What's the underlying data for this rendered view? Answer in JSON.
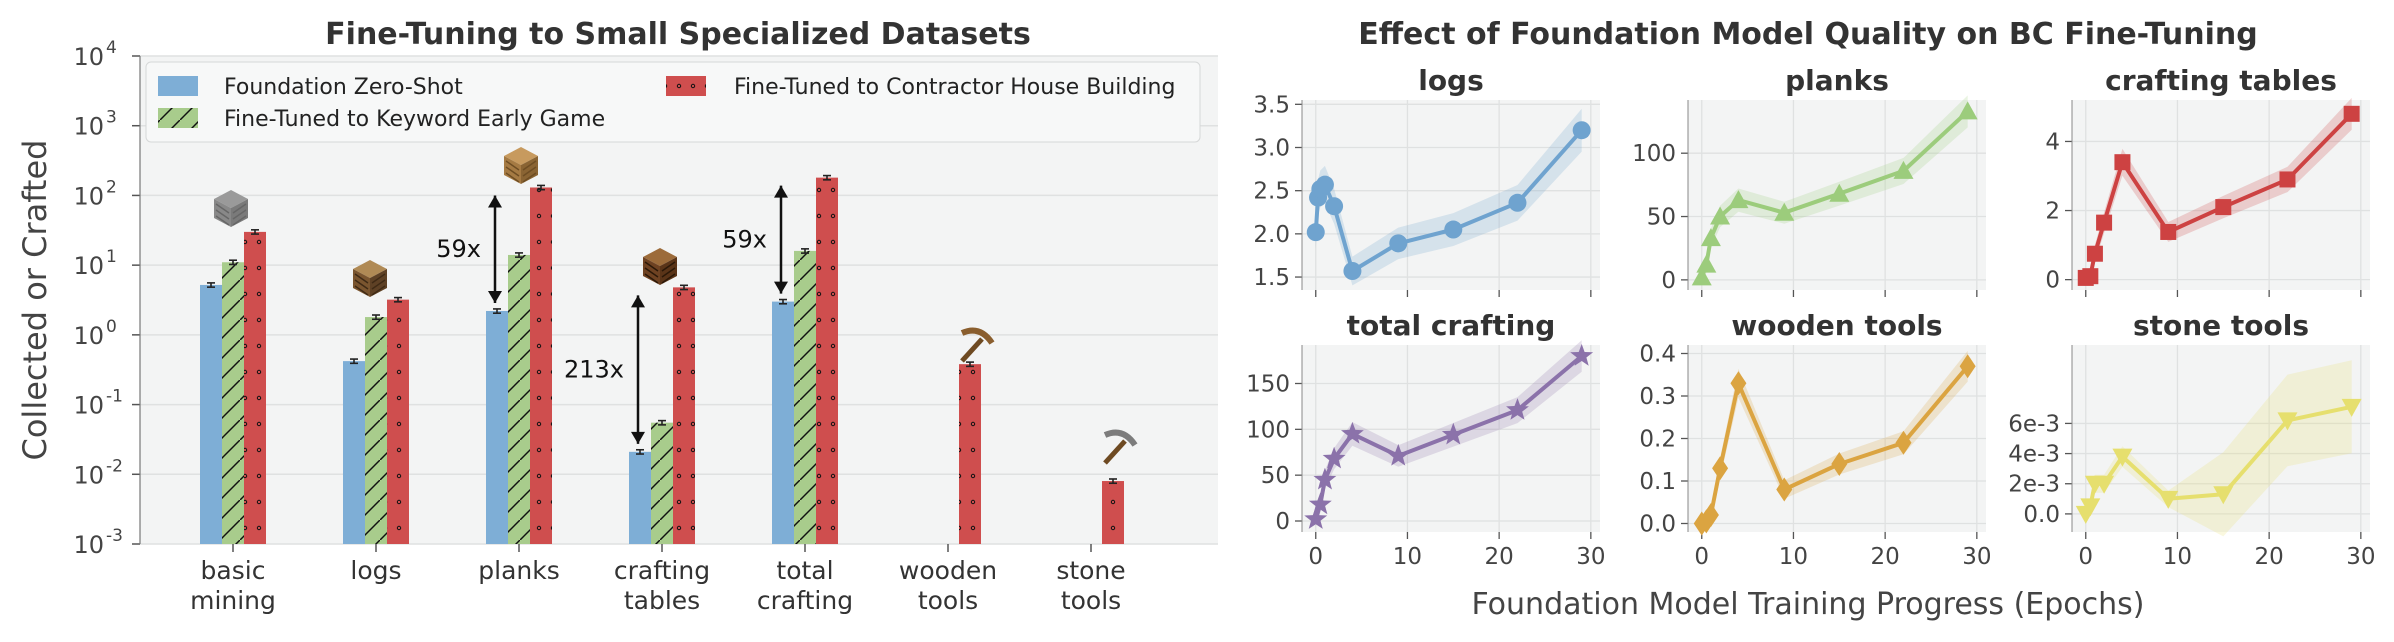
{
  "colors": {
    "zero_shot": "#7eaed6",
    "early_game": "#a8cc8c",
    "house": "#cf4e4e",
    "logs": "#6fa3cf",
    "planks": "#9ccc7c",
    "crafting_tables": "#cd4242",
    "total_crafting": "#8b72aa",
    "wooden_tools": "#dba441",
    "stone_tools": "#e6df6e",
    "panel_bg": "#f3f4f4",
    "grid": "#dfe1e1"
  },
  "chart_data": [
    {
      "type": "bar",
      "title": "Fine-Tuning to Small Specialized Datasets",
      "ylabel": "Collected or Crafted",
      "yscale": "log",
      "ylim": [
        0.001,
        10000
      ],
      "yticks": [
        {
          "value": 10000,
          "base": "10",
          "exp": "4"
        },
        {
          "value": 1000,
          "base": "10",
          "exp": "3"
        },
        {
          "value": 100,
          "base": "10",
          "exp": "2"
        },
        {
          "value": 10,
          "base": "10",
          "exp": "1"
        },
        {
          "value": 1,
          "base": "10",
          "exp": "0"
        },
        {
          "value": 0.1,
          "base": "10",
          "exp": "-1"
        },
        {
          "value": 0.01,
          "base": "10",
          "exp": "-2"
        },
        {
          "value": 0.001,
          "base": "10",
          "exp": "-3"
        }
      ],
      "categories": [
        [
          "basic",
          "mining"
        ],
        [
          "logs"
        ],
        [
          "planks"
        ],
        [
          "crafting",
          "tables"
        ],
        [
          "total",
          "crafting"
        ],
        [
          "wooden",
          "tools"
        ],
        [
          "stone",
          "tools"
        ]
      ],
      "legend_position": "top",
      "series": [
        {
          "name": "Foundation Zero-Shot",
          "key": "zero_shot",
          "values": [
            5.2,
            0.42,
            2.2,
            0.021,
            3.0,
            null,
            null
          ]
        },
        {
          "name": "Fine-Tuned to Keyword Early Game",
          "key": "early_game",
          "values": [
            11,
            1.8,
            14,
            0.055,
            16,
            null,
            null
          ]
        },
        {
          "name": "Fine-Tuned to Contractor House Building",
          "key": "house",
          "values": [
            30,
            3.2,
            130,
            4.8,
            180,
            0.38,
            0.008
          ]
        }
      ],
      "annotations": [
        {
          "text": "59x",
          "category": 2,
          "from": 2.2,
          "to": 130
        },
        {
          "text": "213x",
          "category": 3,
          "from": 0.021,
          "to": 4.8
        },
        {
          "text": "59x",
          "category": 4,
          "from": 3.0,
          "to": 180
        }
      ]
    },
    {
      "type": "line",
      "title": "Effect of Foundation Model Quality on BC Fine-Tuning",
      "xlabel": "Foundation Model Training Progress (Epochs)",
      "panels": [
        {
          "title": "logs",
          "key": "logs",
          "marker": "circle",
          "x": [
            0,
            0.25,
            0.5,
            1,
            2,
            4,
            9,
            15,
            22,
            29
          ],
          "y": [
            2.02,
            2.42,
            2.52,
            2.57,
            2.32,
            1.57,
            1.89,
            2.05,
            2.36,
            3.2
          ],
          "ylim": [
            1.35,
            3.55
          ],
          "yticks": [
            "1.5",
            "2.0",
            "2.5",
            "3.0",
            "3.5"
          ],
          "ytick_values": [
            1.5,
            2.0,
            2.5,
            3.0,
            3.5
          ]
        },
        {
          "title": "planks",
          "key": "planks",
          "marker": "triangle-up",
          "x": [
            0,
            0.5,
            1,
            2,
            4,
            9,
            15,
            22,
            29
          ],
          "y": [
            2,
            12,
            33,
            50,
            63,
            53,
            68,
            86,
            133
          ],
          "ylim": [
            -8,
            142
          ],
          "yticks": [
            "0",
            "50",
            "100"
          ],
          "ytick_values": [
            0,
            50,
            100
          ]
        },
        {
          "title": "crafting tables",
          "key": "crafting_tables",
          "marker": "square",
          "x": [
            0,
            0.5,
            1,
            2,
            4,
            9,
            15,
            22,
            29
          ],
          "y": [
            0.05,
            0.1,
            0.75,
            1.65,
            3.4,
            1.38,
            2.1,
            2.9,
            4.8
          ],
          "ylim": [
            -0.3,
            5.2
          ],
          "yticks": [
            "0",
            "2",
            "4"
          ],
          "ytick_values": [
            0,
            2,
            4
          ]
        },
        {
          "title": "total crafting",
          "key": "total_crafting",
          "marker": "star",
          "x": [
            0,
            0.5,
            1,
            2,
            4,
            9,
            15,
            22,
            29
          ],
          "y": [
            2,
            18,
            45,
            68,
            95,
            71,
            94,
            121,
            180
          ],
          "ylim": [
            -12,
            192
          ],
          "yticks": [
            "0",
            "50",
            "100",
            "150"
          ],
          "ytick_values": [
            0,
            50,
            100,
            150
          ]
        },
        {
          "title": "wooden tools",
          "key": "wooden_tools",
          "marker": "diamond",
          "x": [
            0,
            0.5,
            1,
            2,
            4,
            9,
            15,
            22,
            29
          ],
          "y": [
            0.0,
            0.005,
            0.02,
            0.13,
            0.33,
            0.08,
            0.14,
            0.19,
            0.37
          ],
          "ylim": [
            -0.02,
            0.42
          ],
          "yticks": [
            "0.0",
            "0.1",
            "0.2",
            "0.3",
            "0.4"
          ],
          "ytick_values": [
            0,
            0.1,
            0.2,
            0.3,
            0.4
          ]
        },
        {
          "title": "stone tools",
          "key": "stone_tools",
          "marker": "triangle-down",
          "x": [
            0,
            0.5,
            1,
            2,
            4,
            9,
            15,
            22,
            29
          ],
          "y": [
            0.0,
            0.0005,
            0.002,
            0.002,
            0.0038,
            0.001,
            0.0013,
            0.0062,
            0.0071
          ],
          "ylim": [
            -0.0012,
            0.0112
          ],
          "yticks": [
            "0.0",
            "2e-3",
            "4e-3",
            "6e-3"
          ],
          "ytick_values": [
            0,
            0.002,
            0.004,
            0.006
          ]
        }
      ],
      "xticks": [
        "0",
        "10",
        "20",
        "30"
      ],
      "xtick_values": [
        0,
        10,
        20,
        30
      ],
      "xlim": [
        -1.5,
        31
      ]
    }
  ]
}
